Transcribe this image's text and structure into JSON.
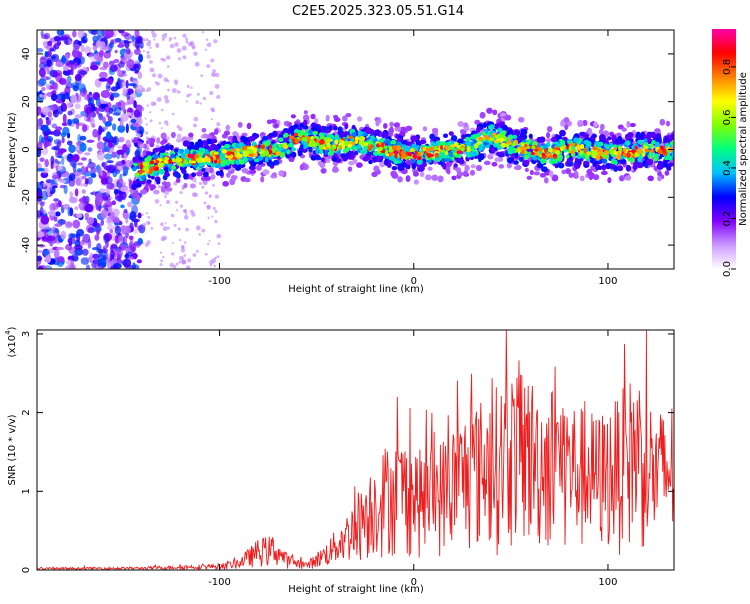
{
  "figure": {
    "title": "C2E5.2025.323.05.51.G14"
  },
  "chart_data": [
    {
      "type": "heatmap",
      "name": "spectrogram",
      "xlabel": "Height of straight line (km)",
      "ylabel": "Frequency (Hz)",
      "xlim": [
        -194,
        134
      ],
      "ylim": [
        -50,
        50
      ],
      "xticks": [
        -100,
        0,
        100
      ],
      "yticks": [
        -40,
        -20,
        0,
        20,
        40
      ],
      "colorbar": {
        "label": "Normalized spectral amplitude",
        "range": [
          0,
          0.95
        ],
        "ticks": [
          0.0,
          0.2,
          0.4,
          0.6,
          0.8
        ],
        "tick_labels": [
          "0.0",
          "0.2",
          "0.4",
          "0.6",
          "0.8"
        ],
        "colors": [
          "#ffffff",
          "#cc99ff",
          "#8000ff",
          "#0000ff",
          "#00bfff",
          "#00ff80",
          "#80ff00",
          "#ffff00",
          "#ff8000",
          "#ff0000",
          "#ff00aa"
        ]
      },
      "trace_center_hz": [
        [
          -144,
          -9
        ],
        [
          -130,
          -6
        ],
        [
          -115,
          -4
        ],
        [
          -100,
          -3
        ],
        [
          -85,
          -1
        ],
        [
          -70,
          0
        ],
        [
          -60,
          5
        ],
        [
          -50,
          3
        ],
        [
          -40,
          2
        ],
        [
          -30,
          4
        ],
        [
          -20,
          1
        ],
        [
          -10,
          -1
        ],
        [
          0,
          -2
        ],
        [
          10,
          -1
        ],
        [
          20,
          0
        ],
        [
          30,
          1
        ],
        [
          40,
          6
        ],
        [
          50,
          2
        ],
        [
          60,
          0
        ],
        [
          70,
          -2
        ],
        [
          80,
          1
        ],
        [
          90,
          -1
        ],
        [
          100,
          -2
        ],
        [
          110,
          -1
        ],
        [
          120,
          0
        ],
        [
          134,
          -1
        ]
      ],
      "noise_region_km": [
        -194,
        -140
      ]
    },
    {
      "type": "line",
      "name": "snr",
      "xlabel": "Height of straight line (km)",
      "ylabel": "SNR (10 * v/v)",
      "exponent_label": "(x10",
      "exponent_power": "4",
      "exponent_close": ")",
      "xlim": [
        -194,
        134
      ],
      "ylim": [
        0,
        3.05
      ],
      "xticks": [
        -100,
        0,
        100
      ],
      "yticks": [
        0,
        1,
        2,
        3
      ],
      "line_color": "#ee1c1c",
      "envelope": [
        [
          -194,
          0.03
        ],
        [
          -140,
          0.04
        ],
        [
          -120,
          0.06
        ],
        [
          -100,
          0.08
        ],
        [
          -90,
          0.15
        ],
        [
          -80,
          0.4
        ],
        [
          -72,
          0.45
        ],
        [
          -65,
          0.2
        ],
        [
          -55,
          0.1
        ],
        [
          -45,
          0.35
        ],
        [
          -35,
          0.7
        ],
        [
          -25,
          1.2
        ],
        [
          -15,
          1.6
        ],
        [
          -5,
          1.7
        ],
        [
          5,
          1.5
        ],
        [
          15,
          1.7
        ],
        [
          25,
          2.0
        ],
        [
          35,
          2.2
        ],
        [
          45,
          2.4
        ],
        [
          55,
          2.7
        ],
        [
          65,
          2.3
        ],
        [
          75,
          2.4
        ],
        [
          85,
          2.1
        ],
        [
          95,
          2.0
        ],
        [
          105,
          2.2
        ],
        [
          115,
          2.6
        ],
        [
          125,
          2.0
        ],
        [
          134,
          2.2
        ]
      ]
    }
  ]
}
